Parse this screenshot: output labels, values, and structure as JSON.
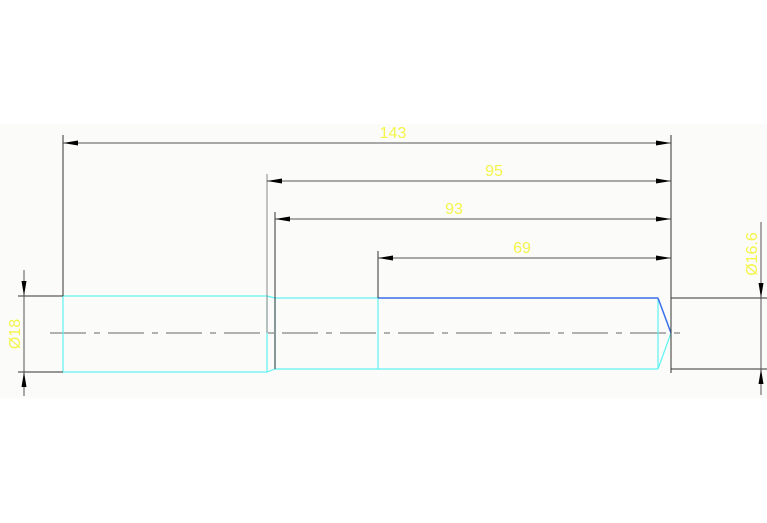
{
  "drawing": {
    "dimensions": {
      "overall_length": "143",
      "length_95": "95",
      "length_93": "93",
      "length_69": "69",
      "diameter_left": "Ø18",
      "diameter_right": "Ø16.6"
    },
    "colors": {
      "dimension_text": "#f4f44a",
      "part_outline": "#5ff3f3",
      "highlighted_edge": "#3a6ee8",
      "dimension_line": "#555555"
    }
  }
}
